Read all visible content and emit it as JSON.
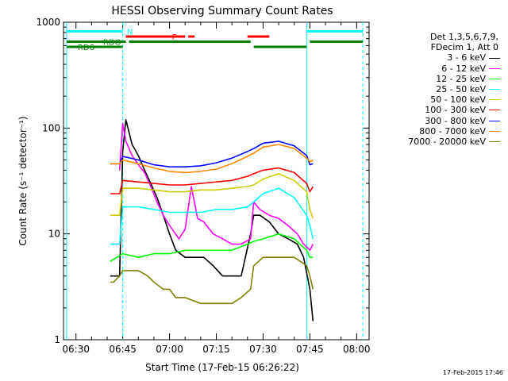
{
  "chart_data": {
    "type": "line",
    "title": "HESSI Observing Summary Count Rates",
    "xlabel": "Start Time (17-Feb-15 06:26:22)",
    "ylabel": "Count Rate (s⁻¹ detector⁻¹)",
    "y_scale": "log",
    "ylim": [
      1,
      1000
    ],
    "xlim": [
      "06:26",
      "08:04"
    ],
    "x_ticks": [
      "06:30",
      "06:45",
      "07:00",
      "07:15",
      "07:30",
      "07:45",
      "08:00"
    ],
    "y_ticks": [
      "1",
      "10",
      "100",
      "1000"
    ],
    "legend_position": "right",
    "legend_header": [
      "Det 1,3,5,6,7,9,",
      "FDecim 1, Att 0"
    ],
    "series": [
      {
        "name": "3 - 6 keV",
        "color": "#000000",
        "x": [
          "06:41",
          "06:44",
          "06:45",
          "06:46",
          "06:48",
          "06:50",
          "06:52",
          "06:54",
          "06:56",
          "06:58",
          "07:00",
          "07:02",
          "07:05",
          "07:08",
          "07:11",
          "07:14",
          "07:17",
          "07:20",
          "07:23",
          "07:26",
          "07:27",
          "07:29",
          "07:32",
          "07:35",
          "07:38",
          "07:41",
          "07:43",
          "07:45",
          "07:46"
        ],
        "y": [
          4,
          4,
          60,
          120,
          70,
          55,
          40,
          30,
          22,
          15,
          10,
          7,
          6,
          6,
          6,
          5,
          4,
          4,
          4,
          10,
          15,
          15,
          13,
          10,
          9,
          8,
          6,
          3,
          1.5
        ]
      },
      {
        "name": "6 - 12 keV",
        "color": "#ff00ff",
        "x": [
          "06:44",
          "06:45",
          "06:46",
          "06:48",
          "06:50",
          "06:52",
          "06:54",
          "06:56",
          "06:58",
          "07:00",
          "07:03",
          "07:05",
          "07:07",
          "07:09",
          "07:11",
          "07:14",
          "07:17",
          "07:20",
          "07:23",
          "07:26",
          "07:27",
          "07:29",
          "07:32",
          "07:35",
          "07:38",
          "07:41",
          "07:43",
          "07:45",
          "07:46"
        ],
        "y": [
          40,
          110,
          75,
          55,
          45,
          38,
          28,
          20,
          15,
          12,
          9,
          11,
          28,
          14,
          13,
          10,
          9,
          8,
          8,
          9,
          20,
          17,
          15,
          14,
          12,
          10,
          8,
          7,
          8
        ]
      },
      {
        "name": "12 - 25 keV",
        "color": "#00ff00",
        "x": [
          "06:41",
          "06:45",
          "06:50",
          "06:55",
          "07:00",
          "07:05",
          "07:10",
          "07:15",
          "07:20",
          "07:25",
          "07:27",
          "07:30",
          "07:35",
          "07:40",
          "07:44",
          "07:45",
          "07:46"
        ],
        "y": [
          5.5,
          6.5,
          6,
          6.5,
          6.5,
          7,
          7,
          7,
          7,
          8,
          8.5,
          9,
          10,
          9,
          7,
          6,
          6
        ]
      },
      {
        "name": "25 - 50 keV",
        "color": "#00ffff",
        "x": [
          "06:41",
          "06:44",
          "06:45",
          "06:50",
          "06:55",
          "07:00",
          "07:05",
          "07:10",
          "07:15",
          "07:20",
          "07:25",
          "07:27",
          "07:30",
          "07:35",
          "07:40",
          "07:44",
          "07:45",
          "07:46"
        ],
        "y": [
          8,
          8,
          18,
          18,
          17,
          16,
          16,
          16,
          17,
          17,
          18,
          20,
          24,
          27,
          22,
          15,
          12,
          9
        ]
      },
      {
        "name": "50 - 100 keV",
        "color": "#cccc00",
        "x": [
          "06:41",
          "06:44",
          "06:45",
          "06:50",
          "06:55",
          "07:00",
          "07:05",
          "07:10",
          "07:15",
          "07:20",
          "07:25",
          "07:27",
          "07:30",
          "07:35",
          "07:40",
          "07:44",
          "07:45",
          "07:46"
        ],
        "y": [
          15,
          15,
          27,
          27,
          26,
          25,
          25,
          26,
          26,
          27,
          28,
          29,
          33,
          37,
          32,
          25,
          17,
          14
        ]
      },
      {
        "name": "100 - 300 keV",
        "color": "#ff0000",
        "x": [
          "06:41",
          "06:44",
          "06:45",
          "06:50",
          "06:55",
          "07:00",
          "07:05",
          "07:10",
          "07:15",
          "07:20",
          "07:25",
          "07:27",
          "07:30",
          "07:35",
          "07:40",
          "07:44",
          "07:45",
          "07:46"
        ],
        "y": [
          24,
          24,
          32,
          31,
          30,
          29,
          29,
          30,
          31,
          32,
          35,
          37,
          40,
          42,
          38,
          30,
          25,
          28
        ]
      },
      {
        "name": "300 - 800 keV",
        "color": "#0000ff",
        "x": [
          "06:41",
          "06:44",
          "06:45",
          "06:50",
          "06:55",
          "07:00",
          "07:05",
          "07:10",
          "07:15",
          "07:20",
          "07:25",
          "07:27",
          "07:30",
          "07:35",
          "07:40",
          "07:44",
          "07:45",
          "07:46"
        ],
        "y": [
          46,
          46,
          54,
          50,
          45,
          43,
          43,
          44,
          47,
          52,
          60,
          64,
          72,
          75,
          68,
          55,
          45,
          46
        ]
      },
      {
        "name": "800 - 7000 keV",
        "color": "#ff8800",
        "x": [
          "06:41",
          "06:44",
          "06:45",
          "06:50",
          "06:55",
          "07:00",
          "07:05",
          "07:10",
          "07:15",
          "07:20",
          "07:25",
          "07:27",
          "07:30",
          "07:35",
          "07:40",
          "07:44",
          "07:45",
          "07:46"
        ],
        "y": [
          46,
          46,
          50,
          46,
          42,
          39,
          38,
          39,
          41,
          46,
          54,
          58,
          66,
          70,
          64,
          52,
          48,
          50
        ]
      },
      {
        "name": "7000 - 20000 keV",
        "color": "#808000",
        "x": [
          "06:41",
          "06:42",
          "06:44",
          "06:45",
          "06:48",
          "06:50",
          "06:53",
          "06:55",
          "06:58",
          "07:00",
          "07:02",
          "07:05",
          "07:10",
          "07:15",
          "07:20",
          "07:23",
          "07:26",
          "07:27",
          "07:30",
          "07:35",
          "07:40",
          "07:44",
          "07:45",
          "07:46"
        ],
        "y": [
          3.5,
          3.5,
          4,
          4.5,
          4.5,
          4.5,
          4,
          3.5,
          3,
          3,
          2.5,
          2.5,
          2.2,
          2.2,
          2.2,
          2.5,
          3,
          5,
          6,
          6,
          6,
          5,
          4,
          3
        ]
      }
    ],
    "state_bars": [
      {
        "label": "N",
        "color": "#00ffff",
        "level": 1,
        "segments": [
          [
            "06:27",
            "06:45"
          ],
          [
            "07:44",
            "08:02"
          ]
        ]
      },
      {
        "label": "F",
        "color": "#ff0000",
        "level": 2,
        "segments": [
          [
            "06:46",
            "07:05"
          ],
          [
            "07:06",
            "07:08"
          ],
          [
            "07:25",
            "07:32"
          ]
        ]
      },
      {
        "label": "RDO",
        "color": "#008000",
        "level": 3,
        "segments": [
          [
            "06:27",
            "06:46"
          ],
          [
            "06:47",
            "07:26"
          ],
          [
            "07:45",
            "08:02"
          ]
        ]
      },
      {
        "label": "RD6",
        "color": "#008000",
        "level": 4,
        "segments": [
          [
            "06:27",
            "06:45"
          ],
          [
            "07:27",
            "07:44"
          ]
        ]
      }
    ],
    "vertical_markers": [
      {
        "x": "06:27",
        "color": "#00ffff",
        "style": "solid"
      },
      {
        "x": "06:45",
        "color": "#00ffff",
        "style": "dashed"
      },
      {
        "x": "07:44",
        "color": "#00ffff",
        "style": "solid"
      },
      {
        "x": "08:02",
        "color": "#00ffff",
        "style": "dashed"
      }
    ]
  },
  "footer": {
    "timestamp": "17-Feb-2015 17:46"
  }
}
